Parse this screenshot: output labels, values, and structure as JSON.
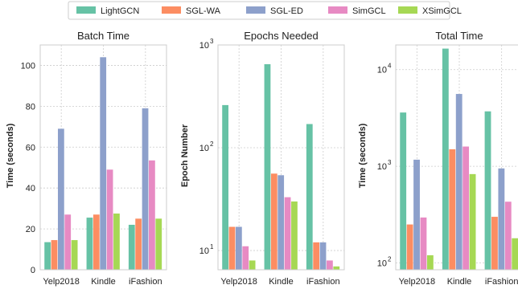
{
  "colors": {
    "series": [
      "#66c2a5",
      "#fc8d62",
      "#8da0cb",
      "#e78ac3",
      "#a6d854"
    ],
    "grid": "#cccccc",
    "axis": "#cccccc",
    "legend_border": "#cccccc"
  },
  "legend": {
    "placement": "top-center",
    "entries": [
      "LightGCN",
      "SGL-WA",
      "SGL-ED",
      "SimGCL",
      "XSimGCL"
    ]
  },
  "chart_data": [
    {
      "type": "bar",
      "title": "Batch Time",
      "ylabel": "Time (seconds)",
      "xlabel": "",
      "scale": "linear",
      "ylim": [
        0,
        110
      ],
      "yticks": [
        0,
        20,
        40,
        60,
        80,
        100
      ],
      "grid": true,
      "categories": [
        "Yelp2018",
        "Kindle",
        "iFashion"
      ],
      "series": [
        {
          "name": "LightGCN",
          "values": [
            13.5,
            25.5,
            22
          ]
        },
        {
          "name": "SGL-WA",
          "values": [
            14.5,
            27,
            25
          ]
        },
        {
          "name": "SGL-ED",
          "values": [
            69,
            104,
            79
          ]
        },
        {
          "name": "SimGCL",
          "values": [
            27,
            49,
            53.5
          ]
        },
        {
          "name": "XSimGCL",
          "values": [
            14.5,
            27.5,
            25
          ]
        }
      ]
    },
    {
      "type": "bar",
      "title": "Epochs Needed",
      "ylabel": "Epoch Number",
      "xlabel": "",
      "scale": "log",
      "ylim": [
        6.5,
        1000
      ],
      "yticks": [
        10,
        100,
        1000
      ],
      "ytick_labels": [
        {
          "base": "10",
          "exp": "1"
        },
        {
          "base": "10",
          "exp": "2"
        },
        {
          "base": "10",
          "exp": "3"
        }
      ],
      "grid": true,
      "categories": [
        "Yelp2018",
        "Kindle",
        "iFashion"
      ],
      "series": [
        {
          "name": "LightGCN",
          "values": [
            260,
            650,
            170
          ]
        },
        {
          "name": "SGL-WA",
          "values": [
            17,
            56,
            12
          ]
        },
        {
          "name": "SGL-ED",
          "values": [
            17,
            54,
            12
          ]
        },
        {
          "name": "SimGCL",
          "values": [
            11,
            33,
            8
          ]
        },
        {
          "name": "XSimGCL",
          "values": [
            8,
            30,
            7
          ]
        }
      ]
    },
    {
      "type": "bar",
      "title": "Total Time",
      "ylabel": "Time (seconds)",
      "xlabel": "",
      "scale": "log",
      "ylim": [
        85,
        18000
      ],
      "yticks": [
        100,
        1000,
        10000
      ],
      "ytick_labels": [
        {
          "base": "10",
          "exp": "2"
        },
        {
          "base": "10",
          "exp": "3"
        },
        {
          "base": "10",
          "exp": "4"
        }
      ],
      "grid": true,
      "categories": [
        "Yelp2018",
        "Kindle",
        "iFashion"
      ],
      "series": [
        {
          "name": "LightGCN",
          "values": [
            3600,
            16500,
            3700
          ]
        },
        {
          "name": "SGL-WA",
          "values": [
            250,
            1500,
            300
          ]
        },
        {
          "name": "SGL-ED",
          "values": [
            1170,
            5600,
            950
          ]
        },
        {
          "name": "SimGCL",
          "values": [
            295,
            1600,
            430
          ]
        },
        {
          "name": "XSimGCL",
          "values": [
            120,
            830,
            180
          ]
        }
      ]
    }
  ]
}
